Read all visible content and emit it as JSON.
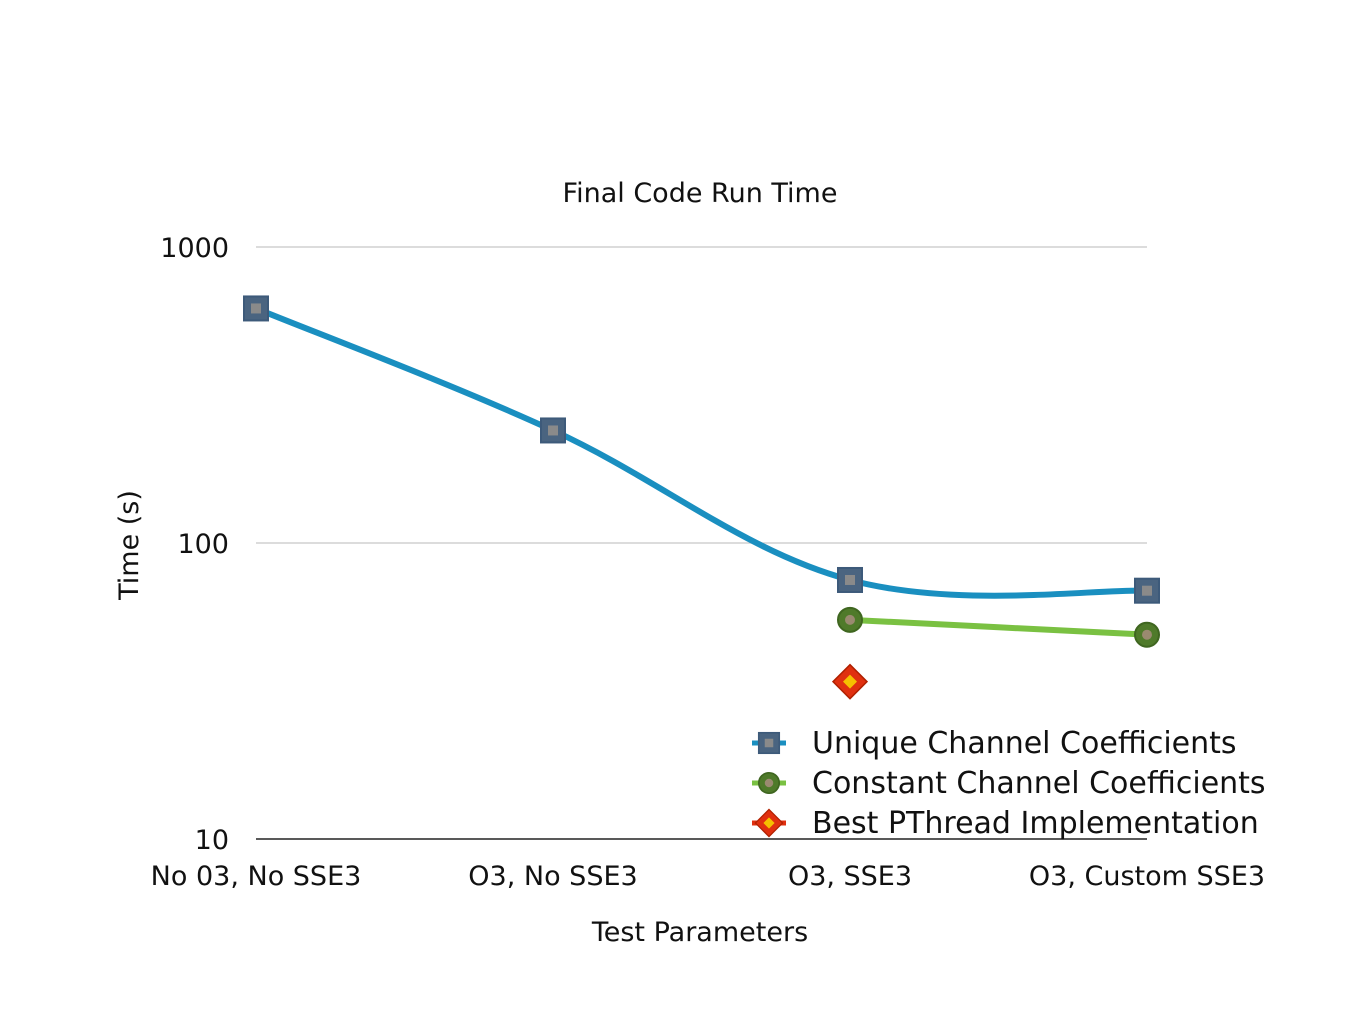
{
  "chart_data": {
    "type": "line",
    "title": "Final Code Run Time",
    "xlabel": "Test Parameters",
    "ylabel": "Time (s)",
    "yscale": "log",
    "ylim": [
      10,
      1000
    ],
    "yticks": [
      10,
      100,
      1000
    ],
    "ytick_labels": [
      "10",
      "100",
      "1000"
    ],
    "grid": true,
    "legend_position": "bottom-right",
    "categories": [
      "No 03, No SSE3",
      "O3, No SSE3",
      "O3, SSE3",
      "O3, Custom SSE3"
    ],
    "series": [
      {
        "name": "Unique Channel Coefficients",
        "marker": "square",
        "color": "#1a8fc0",
        "marker_color": "#4a6480",
        "values": [
          620,
          240,
          75,
          69
        ]
      },
      {
        "name": "Constant Channel Coefficients",
        "marker": "circle",
        "color": "#7ac142",
        "marker_color": "#4f7a2a",
        "values": [
          null,
          null,
          55,
          49
        ]
      },
      {
        "name": "Best PThread Implementation",
        "marker": "diamond",
        "color": "#e03010",
        "marker_color": "#f5c000",
        "values": [
          null,
          null,
          34,
          null
        ]
      }
    ]
  }
}
